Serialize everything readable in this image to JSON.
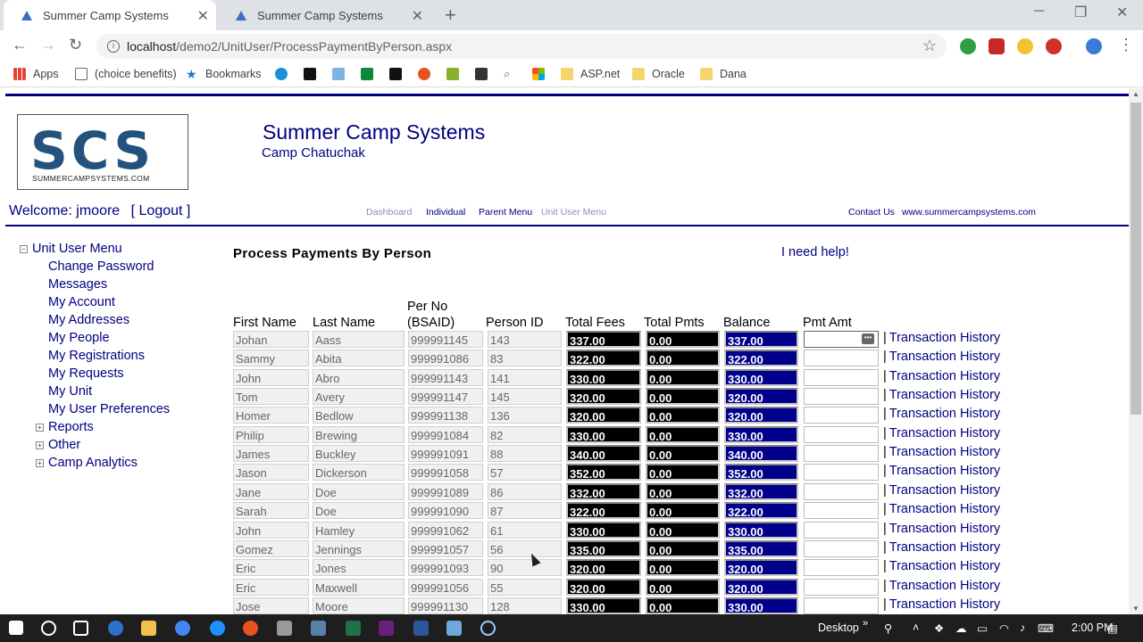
{
  "browser": {
    "tabs": [
      {
        "label": "Summer Camp Systems"
      },
      {
        "label": "Summer Camp Systems"
      }
    ],
    "url_host": "localhost",
    "url_path": "/demo2/UnitUser/ProcessPaymentByPerson.aspx",
    "bookmarks": [
      "Apps",
      "(choice benefits)",
      "Bookmarks",
      "ASP.net",
      "Oracle",
      "Dana"
    ]
  },
  "header": {
    "title": "Summer Camp Systems",
    "camp": "Camp Chatuchak",
    "logo_text": "SCS",
    "logo_sub": "SUMMERCAMPSYSTEMS.COM",
    "welcome": "Welcome: jmoore",
    "logout": "[ Logout ]"
  },
  "topnav": {
    "dashboard": "Dashboard",
    "individual": "Individual",
    "parent_menu": "Parent Menu",
    "unit_user_menu": "Unit User Menu",
    "contact": "Contact Us",
    "site": "www.summercampsystems.com"
  },
  "menu": {
    "root": "Unit User Menu",
    "items": [
      "Change Password",
      "Messages",
      "My Account",
      "My Addresses",
      "My People",
      "My Registrations",
      "My Requests",
      "My Unit",
      "My User Preferences"
    ],
    "groups": [
      "Reports",
      "Other",
      "Camp Analytics"
    ]
  },
  "content": {
    "heading": "Process Payments By Person",
    "help": "I need help!",
    "columns": {
      "first": "First Name",
      "last": "Last Name",
      "perno1": "Per No",
      "perno2": "(BSAID)",
      "pid": "Person ID",
      "fees": "Total Fees",
      "pmts": "Total Pmts",
      "bal": "Balance",
      "pmt": "Pmt Amt"
    },
    "link_label": "Transaction History",
    "rows": [
      [
        "Johan",
        "Aass",
        "999991145",
        "143",
        "337.00",
        "0.00",
        "337.00"
      ],
      [
        "Sammy",
        "Abita",
        "999991086",
        "83",
        "322.00",
        "0.00",
        "322.00"
      ],
      [
        "John",
        "Abro",
        "999991143",
        "141",
        "330.00",
        "0.00",
        "330.00"
      ],
      [
        "Tom",
        "Avery",
        "999991147",
        "145",
        "320.00",
        "0.00",
        "320.00"
      ],
      [
        "Homer",
        "Bedlow",
        "999991138",
        "136",
        "320.00",
        "0.00",
        "320.00"
      ],
      [
        "Philip",
        "Brewing",
        "999991084",
        "82",
        "330.00",
        "0.00",
        "330.00"
      ],
      [
        "James",
        "Buckley",
        "999991091",
        "88",
        "340.00",
        "0.00",
        "340.00"
      ],
      [
        "Jason",
        "Dickerson",
        "999991058",
        "57",
        "352.00",
        "0.00",
        "352.00"
      ],
      [
        "Jane",
        "Doe",
        "999991089",
        "86",
        "332.00",
        "0.00",
        "332.00"
      ],
      [
        "Sarah",
        "Doe",
        "999991090",
        "87",
        "322.00",
        "0.00",
        "322.00"
      ],
      [
        "John",
        "Hamley",
        "999991062",
        "61",
        "330.00",
        "0.00",
        "330.00"
      ],
      [
        "Gomez",
        "Jennings",
        "999991057",
        "56",
        "335.00",
        "0.00",
        "335.00"
      ],
      [
        "Eric",
        "Jones",
        "999991093",
        "90",
        "320.00",
        "0.00",
        "320.00"
      ],
      [
        "Eric",
        "Maxwell",
        "999991056",
        "55",
        "320.00",
        "0.00",
        "320.00"
      ],
      [
        "Jose",
        "Moore",
        "999991130",
        "128",
        "330.00",
        "0.00",
        "330.00"
      ]
    ]
  },
  "taskbar": {
    "desktop": "Desktop",
    "time": "2:00 PM"
  }
}
